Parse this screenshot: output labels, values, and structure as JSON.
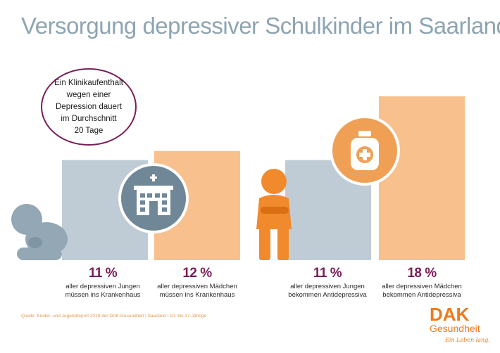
{
  "title": "Versorgung depressiver Schulkinder im Saarland",
  "info_box": {
    "line1": "Ein Klinikaufenthalt",
    "line2": "wegen einer",
    "line3": "Depression dauert",
    "line4": "im Durchschnitt",
    "line5": "20 Tage"
  },
  "chart_data": {
    "type": "bar",
    "categories": [
      "aller depressiven Jungen müssen ins Krankenhaus",
      "aller depressiven Mädchen müssen ins Krankenhaus",
      "aller depressiven Jungen bekommen Antidepressiva",
      "aller depressiven Mädchen bekommen Antidepressiva"
    ],
    "values": [
      11,
      12,
      11,
      18
    ],
    "value_labels": [
      "11 %",
      "12 %",
      "11 %",
      "18 %"
    ],
    "colors": [
      "#c0ccd5",
      "#f8c08c",
      "#c0ccd5",
      "#f8c08c"
    ],
    "ylim": [
      0,
      18
    ],
    "grid": false
  },
  "stats": [
    {
      "pct": "11 %",
      "line1": "aller depressiven Jungen",
      "line2": "müssen ins Krankenhaus"
    },
    {
      "pct": "12 %",
      "line1": "aller depressiven Mädchen",
      "line2": "müssen ins Krankenhaus"
    },
    {
      "pct": "11 %",
      "line1": "aller depressiven Jungen",
      "line2": "bekommen Antidepressiva"
    },
    {
      "pct": "18 %",
      "line1": "aller depressiven Mädchen",
      "line2": "bekommen Antidepressiva"
    }
  ],
  "icons": {
    "hospital": "hospital-icon",
    "medicine": "medicine-bottle-icon",
    "sad_child_sitting": "sad-child-sitting-icon",
    "sad_child_standing": "sad-child-standing-icon"
  },
  "source": "Quelle: Kinder- und Jugendreport 2019 der DAK-Gesundheit I Saarland I 10- bis 17-Jährige",
  "logo": {
    "mark": "DAK",
    "brand": "Gesundheit",
    "slogan": "Ein Leben lang."
  },
  "colors": {
    "title": "#8da4b2",
    "accent_purple": "#7a1e57",
    "boys_bar": "#c0ccd5",
    "girls_bar": "#f8c08c",
    "icon_blue": "#6f8797",
    "icon_orange": "#f0a054",
    "brand_orange": "#ef7a1a"
  }
}
